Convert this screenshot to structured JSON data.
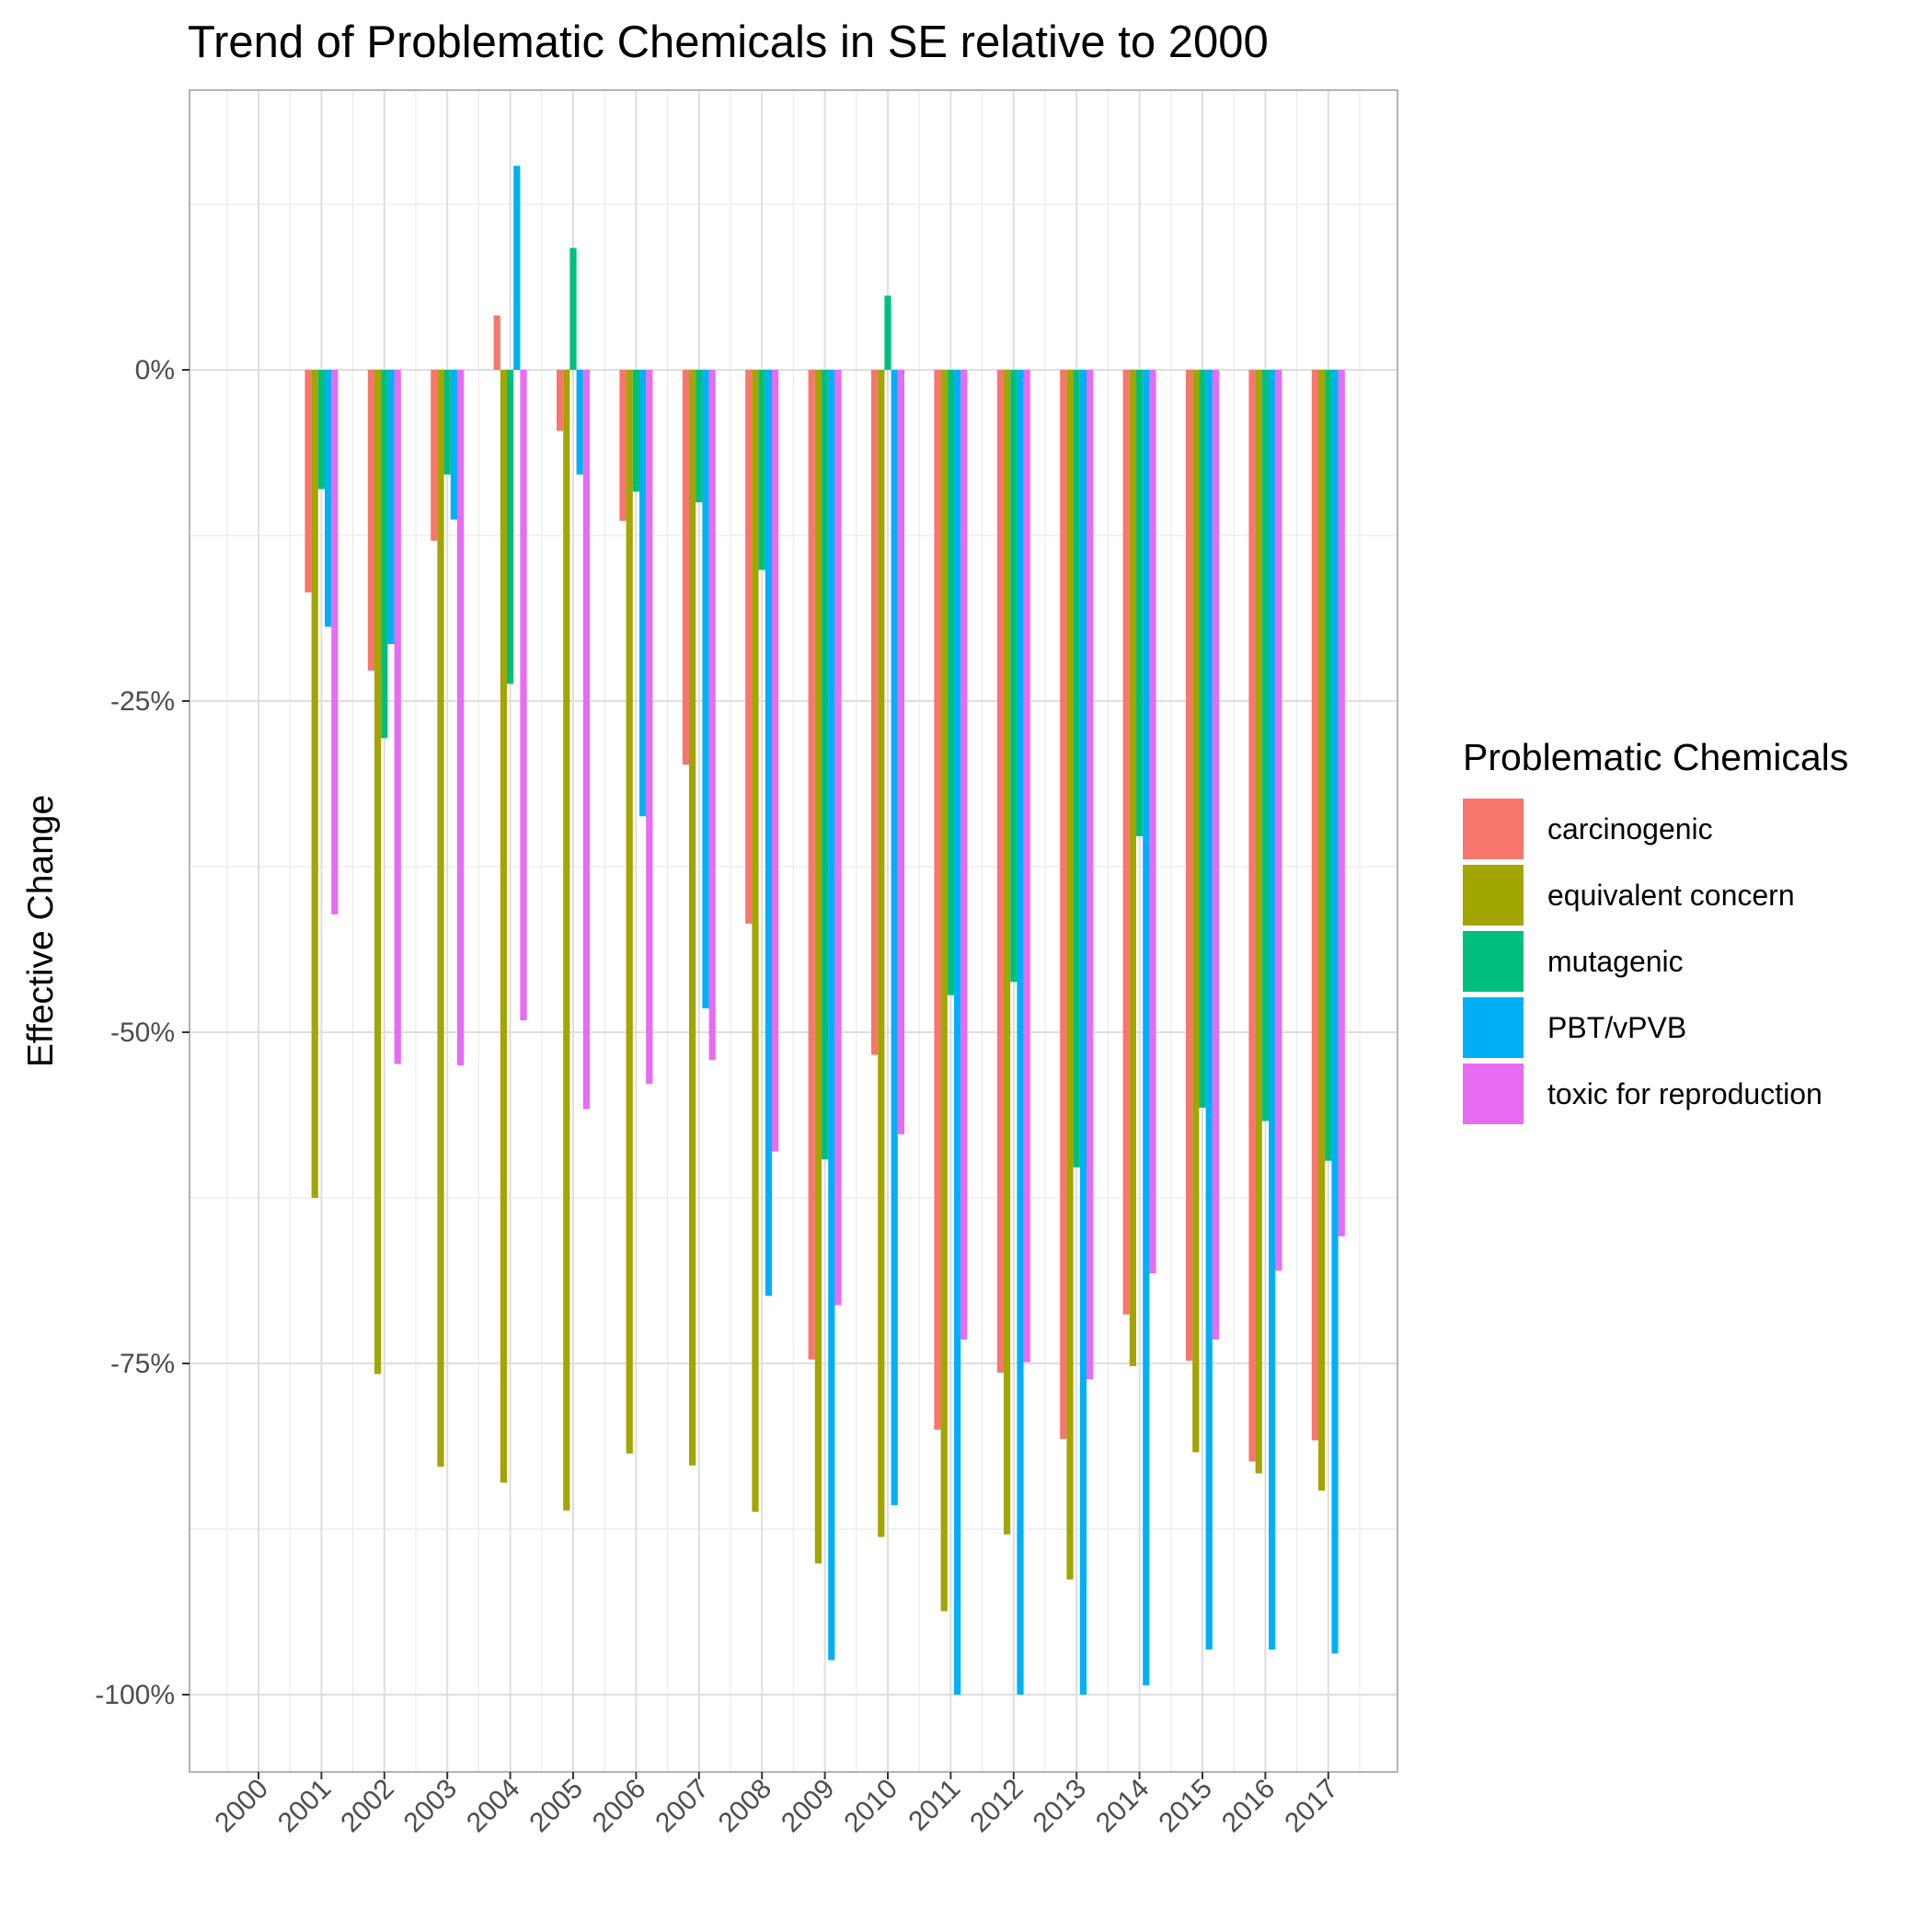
{
  "chart_data": {
    "type": "bar",
    "title": "Trend of Problematic Chemicals in SE relative to 2000",
    "xlabel": "",
    "ylabel": "Effective Change",
    "ylim": [
      -1.06,
      0.21
    ],
    "yticks": [
      0,
      -0.25,
      -0.5,
      -0.75,
      -1.0
    ],
    "ytick_labels": [
      "0%",
      "-25%",
      "-50%",
      "-75%",
      "-100%"
    ],
    "grid": true,
    "legend": {
      "title": "Problematic Chemicals",
      "position": "right"
    },
    "categories": [
      "2000",
      "2001",
      "2002",
      "2003",
      "2004",
      "2005",
      "2006",
      "2007",
      "2008",
      "2009",
      "2010",
      "2011",
      "2012",
      "2013",
      "2014",
      "2015",
      "2016",
      "2017"
    ],
    "series": [
      {
        "name": "carcinogenic",
        "color": "#F8766D",
        "values": [
          0,
          -0.168,
          -0.227,
          -0.129,
          0.041,
          -0.046,
          -0.114,
          -0.298,
          -0.418,
          -0.747,
          -0.517,
          -0.8,
          -0.757,
          -0.807,
          -0.713,
          -0.748,
          -0.824,
          -0.808
        ]
      },
      {
        "name": "equivalent concern",
        "color": "#A3A500",
        "values": [
          0,
          -0.625,
          -0.758,
          -0.828,
          -0.84,
          -0.861,
          -0.818,
          -0.827,
          -0.862,
          -0.901,
          -0.881,
          -0.937,
          -0.879,
          -0.913,
          -0.752,
          -0.817,
          -0.833,
          -0.846
        ]
      },
      {
        "name": "mutagenic",
        "color": "#00BF7D",
        "values": [
          0,
          -0.09,
          -0.278,
          -0.079,
          -0.237,
          0.092,
          -0.092,
          -0.1,
          -0.151,
          -0.596,
          0.056,
          -0.472,
          -0.462,
          -0.602,
          -0.352,
          -0.557,
          -0.567,
          -0.597
        ]
      },
      {
        "name": "PBT/vPVB",
        "color": "#00B0F6",
        "values": [
          0,
          -0.194,
          -0.207,
          -0.113,
          0.154,
          -0.079,
          -0.337,
          -0.482,
          -0.699,
          -0.974,
          -0.857,
          -1.0,
          -1.0,
          -1.0,
          -0.993,
          -0.966,
          -0.966,
          -0.969
        ]
      },
      {
        "name": "toxic for reproduction",
        "color": "#E76BF3",
        "values": [
          0,
          -0.411,
          -0.524,
          -0.525,
          -0.491,
          -0.558,
          -0.539,
          -0.521,
          -0.59,
          -0.706,
          -0.577,
          -0.732,
          -0.749,
          -0.762,
          -0.682,
          -0.732,
          -0.68,
          -0.654
        ]
      }
    ]
  }
}
